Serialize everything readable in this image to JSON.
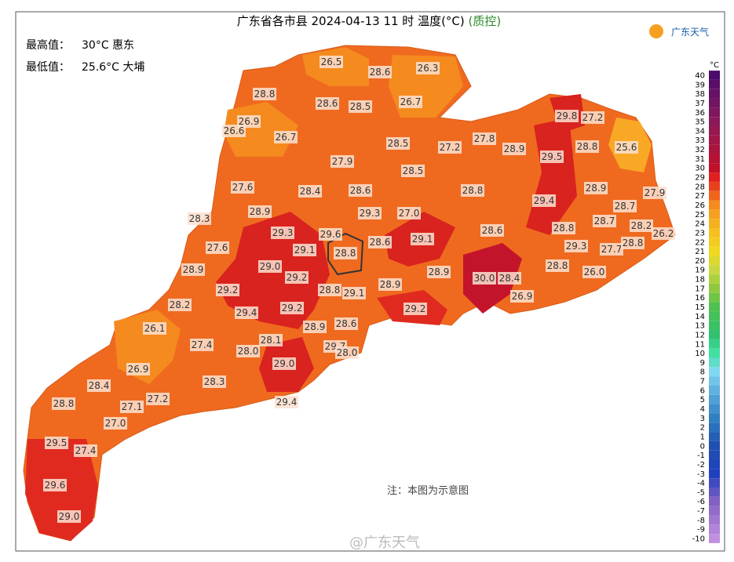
{
  "header": {
    "title": "广东省各市县 2024-04-13 11 时 温度(°C)",
    "qc": "(质控)",
    "logo": "广东天气"
  },
  "stats": {
    "max_label": "最高值：",
    "max_value": "30°C 惠东",
    "min_label": "最低值：",
    "min_value": "25.6°C 大埔"
  },
  "map": {
    "labels": [
      "26.5",
      "28.6",
      "26.3",
      "28.8",
      "28.6",
      "28.5",
      "26.7",
      "29.8",
      "27.2",
      "26.9",
      "26.6",
      "26.7",
      "28.5",
      "27.2",
      "27.8",
      "28.9",
      "29.5",
      "28.8",
      "25.6",
      "27.9",
      "28.5",
      "27.6",
      "28.4",
      "28.6",
      "28.8",
      "28.9",
      "27.9",
      "29.4",
      "28.9",
      "29.3",
      "27.0",
      "28.7",
      "28.3",
      "28.7",
      "28.8",
      "28.2",
      "26.2",
      "28.6",
      "29.3",
      "29.6",
      "29.1",
      "28.8",
      "28.6",
      "29.1",
      "27.6",
      "29.3",
      "27.7",
      "28.8",
      "29.0",
      "28.9",
      "28.8",
      "26.0",
      "29.2",
      "28.9",
      "30.0",
      "28.4",
      "29.2",
      "28.8",
      "29.1",
      "28.9",
      "26.9",
      "28.2",
      "29.4",
      "29.2",
      "29.2",
      "26.1",
      "28.9",
      "28.6",
      "27.4",
      "28.1",
      "28.0",
      "29.7",
      "28.0",
      "29.0",
      "26.9",
      "28.4",
      "28.3",
      "28.8",
      "27.2",
      "27.1",
      "29.4",
      "27.0",
      "29.5",
      "27.4",
      "29.6",
      "29.0"
    ]
  },
  "legend": {
    "unit": "°C",
    "ticks": [
      40,
      39,
      38,
      37,
      36,
      35,
      34,
      33,
      32,
      31,
      30,
      29,
      28,
      27,
      26,
      25,
      24,
      23,
      22,
      21,
      20,
      19,
      18,
      17,
      16,
      15,
      14,
      13,
      12,
      11,
      10,
      9,
      8,
      7,
      6,
      5,
      4,
      3,
      2,
      1,
      0,
      -1,
      -2,
      -3,
      -4,
      -5,
      -6,
      -7,
      -8,
      -9,
      -10
    ]
  },
  "footer": {
    "note": "注：本图为示意图",
    "watermark": "@广东天气"
  }
}
